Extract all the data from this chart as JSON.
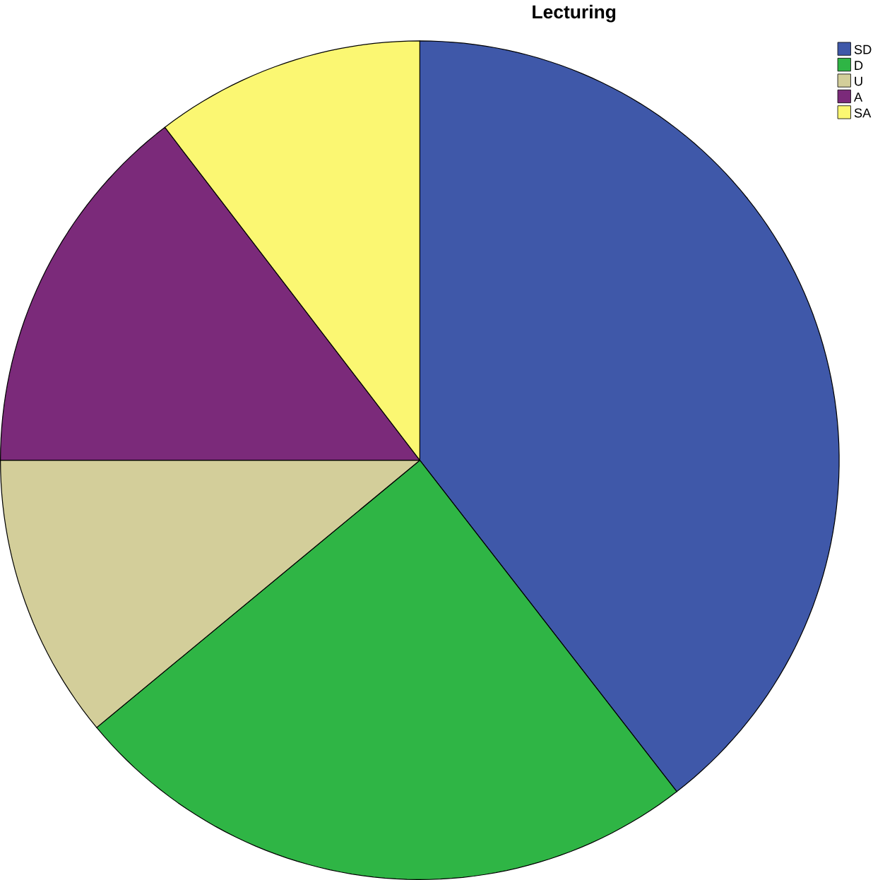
{
  "chart_data": {
    "type": "pie",
    "title": "Lecturing",
    "categories": [
      "SD",
      "D",
      "U",
      "A",
      "SA"
    ],
    "values": [
      39.5,
      24.5,
      11,
      14.6,
      10.4
    ],
    "colors": [
      "#3f58a9",
      "#2fb545",
      "#d3ce9a",
      "#7b2a7a",
      "#fbf772"
    ],
    "legend": "top right"
  }
}
